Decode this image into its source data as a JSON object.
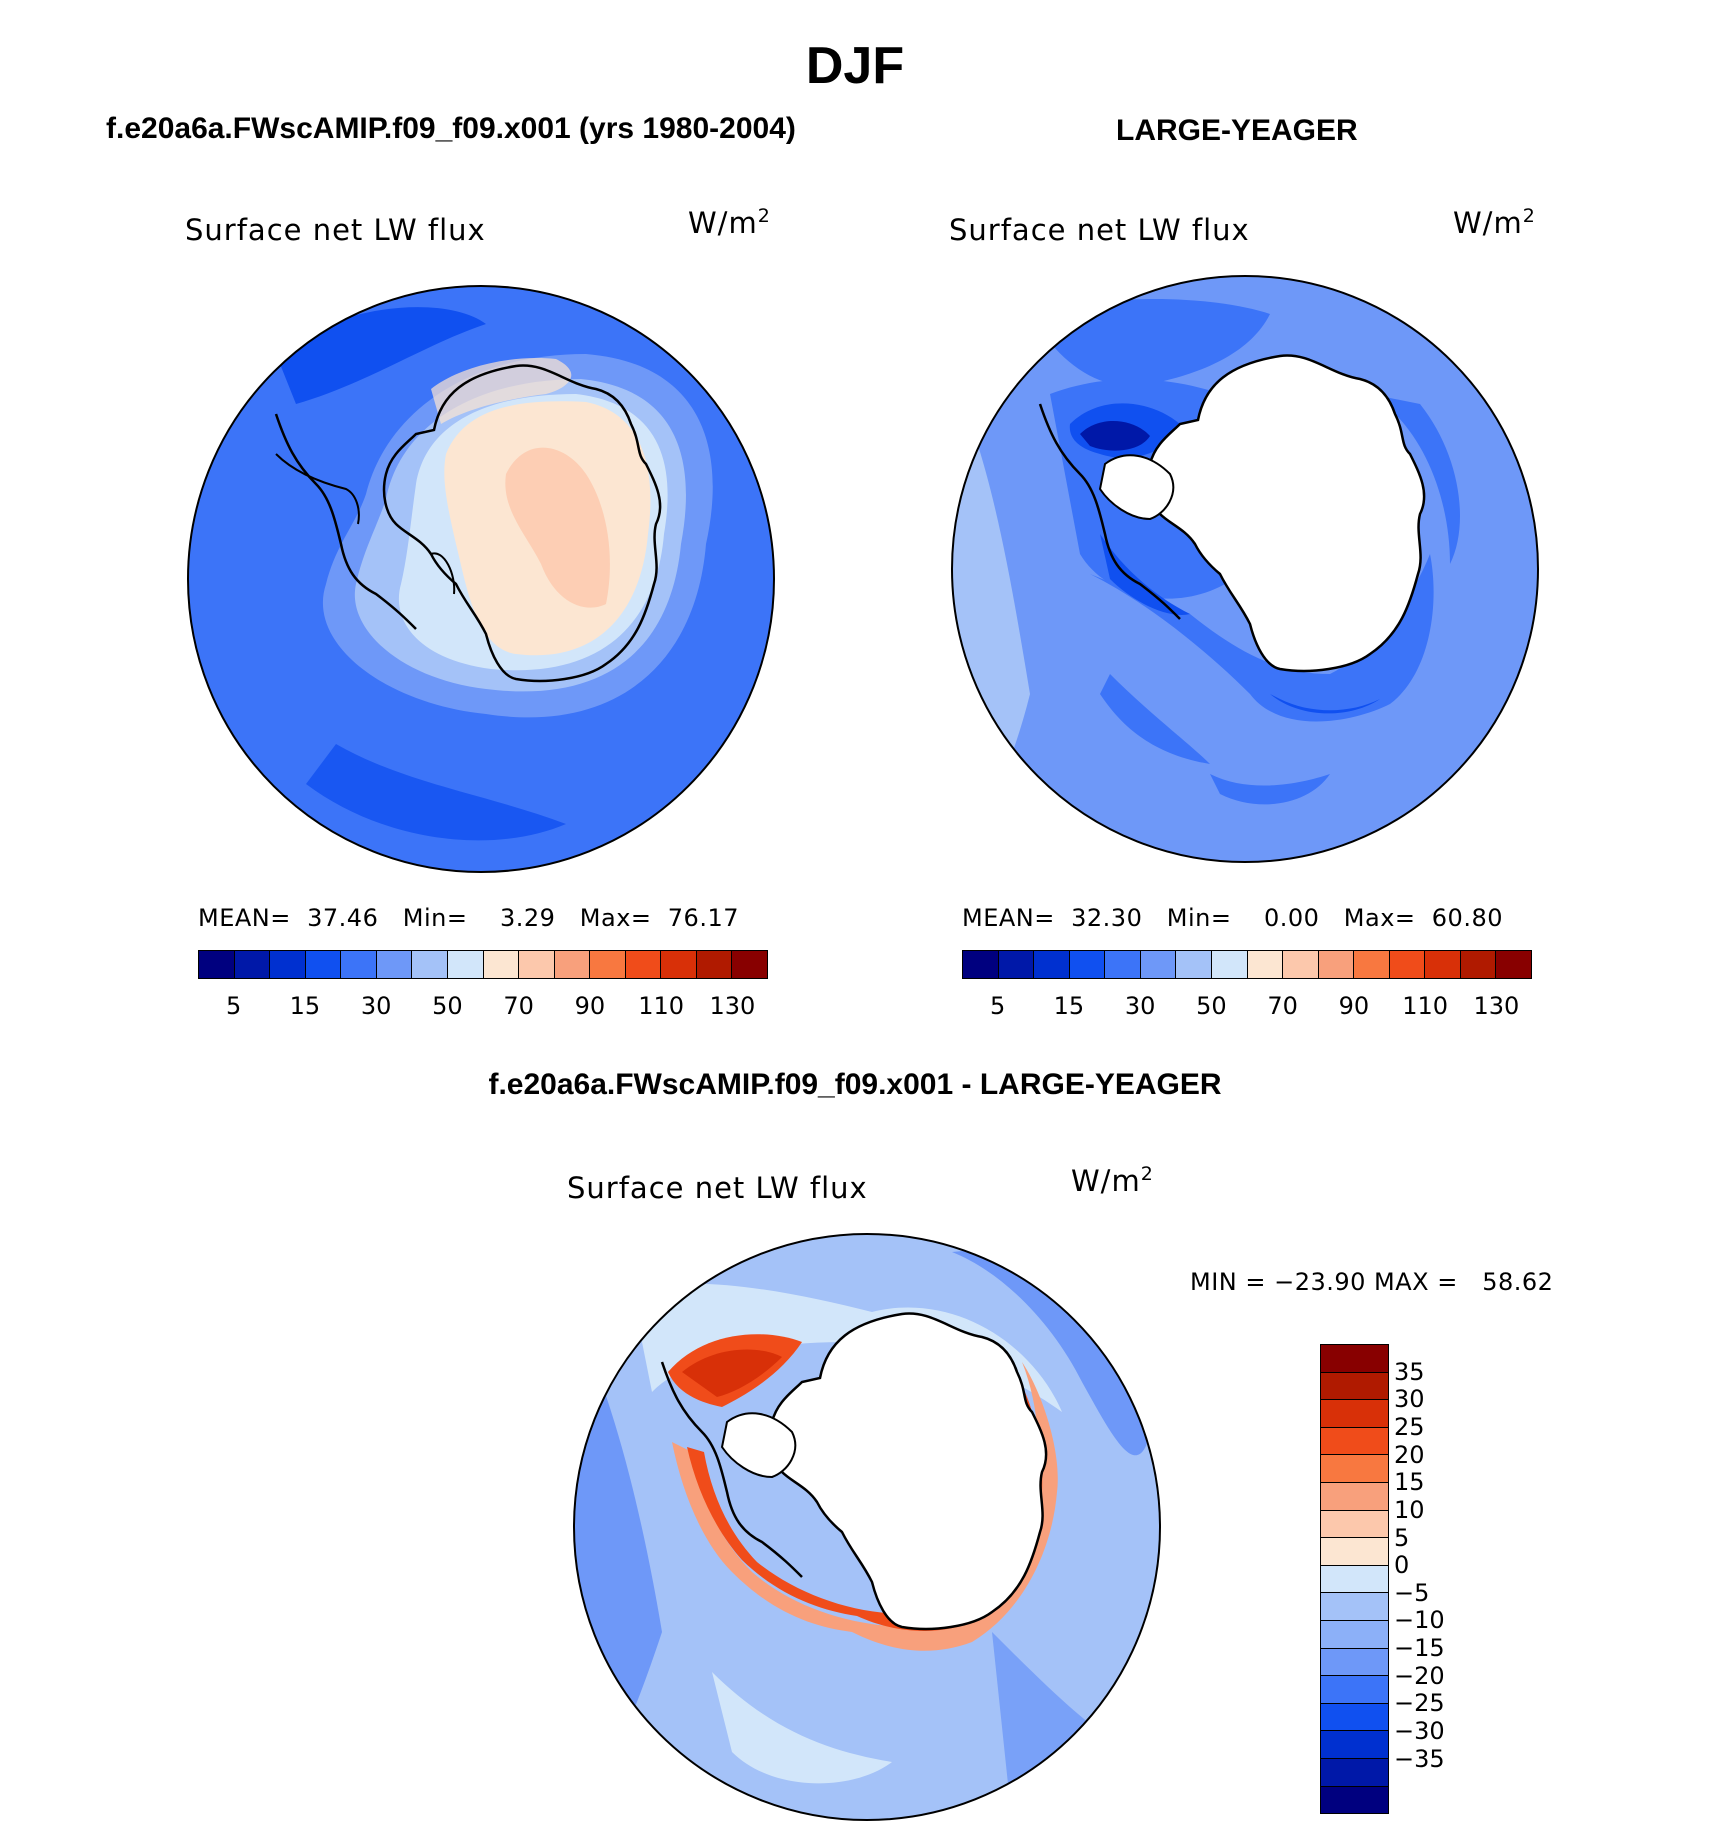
{
  "title": "DJF",
  "units_sup": "2",
  "panels": [
    {
      "case_title": "f.e20a6a.FWscAMIP.f09_f09.x001 (yrs 1980-2004)",
      "var_label": "Surface net LW flux",
      "units": "W/m",
      "mean_label": "MEAN=",
      "mean_value": "37.46",
      "min_label": "Min=",
      "min_value": "3.29",
      "max_label": "Max=",
      "max_value": "76.17"
    },
    {
      "case_title": "LARGE-YEAGER",
      "var_label": "Surface net LW flux",
      "units": "W/m",
      "mean_label": "MEAN=",
      "mean_value": "32.30",
      "min_label": "Min=",
      "min_value": "0.00",
      "max_label": "Max=",
      "max_value": "60.80"
    }
  ],
  "diff_panel": {
    "case_title": "f.e20a6a.FWscAMIP.f09_f09.x001 - LARGE-YEAGER",
    "var_label": "Surface net LW flux",
    "units": "W/m",
    "minmax_text": "MIN = −23.90 MAX =   58.62"
  },
  "colorbar_abs": {
    "colors": [
      "#00007f",
      "#0018a8",
      "#0030d0",
      "#1050f0",
      "#3c74f8",
      "#6e98f8",
      "#a4c2f8",
      "#d2e6fa",
      "#fce6d2",
      "#fcc8ac",
      "#f8a07c",
      "#f87840",
      "#f04c1a",
      "#d83008",
      "#b01a00",
      "#880000"
    ],
    "tick_labels": [
      "5",
      "15",
      "30",
      "50",
      "70",
      "90",
      "110",
      "130"
    ]
  },
  "colorbar_diff": {
    "colors": [
      "#880000",
      "#b01a00",
      "#d83008",
      "#f04c1a",
      "#f87840",
      "#f8a07c",
      "#fcc8ac",
      "#fce6d2",
      "#d2e6fa",
      "#a4c2f8",
      "#8cb0f8",
      "#6e98f8",
      "#3c74f8",
      "#1050f0",
      "#0030d0",
      "#0018a8",
      "#00007f"
    ],
    "tick_labels": [
      "35",
      "30",
      "25",
      "20",
      "15",
      "10",
      "5",
      "0",
      "−5",
      "−10",
      "−15",
      "−20",
      "−25",
      "−30",
      "−35"
    ]
  }
}
